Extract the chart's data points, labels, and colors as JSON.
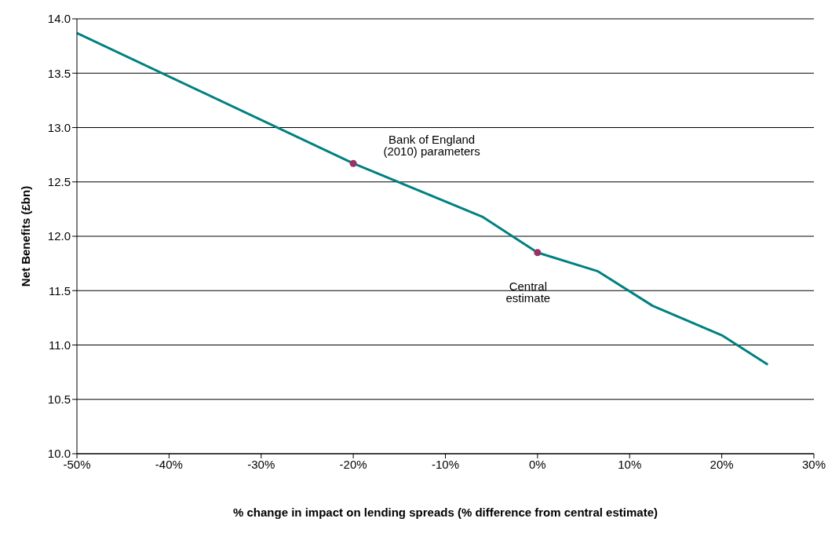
{
  "chart_data": {
    "type": "line",
    "xlabel": "% change in impact on lending spreads (% difference from central estimate)",
    "ylabel": "Net Benefits (£bn)",
    "series": [
      {
        "color": "#008080",
        "marker": "none",
        "x": [
          -50,
          -20,
          -6,
          0,
          6.5,
          12.5,
          20,
          25
        ],
        "values": [
          13.87,
          12.67,
          12.18,
          11.85,
          11.68,
          11.36,
          11.09,
          10.82
        ]
      },
      {
        "type": "scatter",
        "color": "#993366",
        "marker": "circle",
        "x": [
          -20,
          0
        ],
        "values": [
          12.67,
          11.85
        ]
      }
    ],
    "annotations": [
      {
        "text": "Bank of England (2010) parameters",
        "x": -20,
        "y": 12.67
      },
      {
        "text": "Central estimate",
        "x": 0,
        "y": 11.85
      }
    ],
    "xlim": [
      -50,
      30
    ],
    "xticks": [
      {
        "value": -50,
        "label": "-50%"
      },
      {
        "value": -40,
        "label": "-40%"
      },
      {
        "value": -30,
        "label": "-30%"
      },
      {
        "value": -20,
        "label": "-20%"
      },
      {
        "value": -10,
        "label": "-10%"
      },
      {
        "value": 0,
        "label": "0%"
      },
      {
        "value": 10,
        "label": "10%"
      },
      {
        "value": 20,
        "label": "20%"
      },
      {
        "value": 30,
        "label": "30%"
      }
    ],
    "ylim": [
      10,
      14
    ],
    "yticks": [
      {
        "value": 10,
        "label": "10.0"
      },
      {
        "value": 10.5,
        "label": "10.5"
      },
      {
        "value": 11,
        "label": "11.0"
      },
      {
        "value": 11.5,
        "label": "11.5"
      },
      {
        "value": 12,
        "label": "12.0"
      },
      {
        "value": 12.5,
        "label": "12.5"
      },
      {
        "value": 13,
        "label": "13.0"
      },
      {
        "value": 13.5,
        "label": "13.5"
      },
      {
        "value": 14,
        "label": "14.0"
      }
    ],
    "grid": "y"
  }
}
